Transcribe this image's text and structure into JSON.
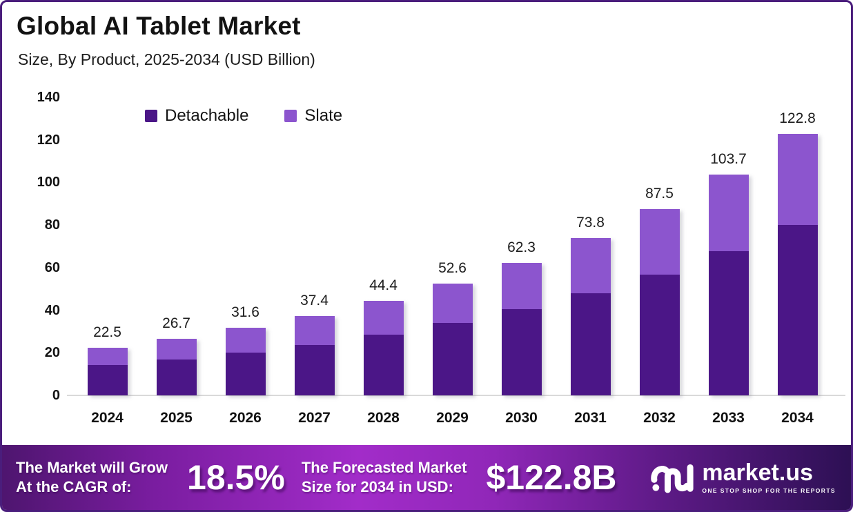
{
  "header": {
    "title": "Global AI Tablet Market",
    "subtitle": "Size, By Product, 2025-2034 (USD Billion)"
  },
  "chart_data": {
    "type": "bar",
    "stacked": true,
    "title": "Global AI Tablet Market Size, By Product, 2025-2034 (USD Billion)",
    "categories": [
      "2024",
      "2025",
      "2026",
      "2027",
      "2028",
      "2029",
      "2030",
      "2031",
      "2032",
      "2033",
      "2034"
    ],
    "series": [
      {
        "name": "Detachable",
        "color": "#4B1687",
        "values": [
          14.3,
          16.9,
          20.0,
          23.8,
          28.5,
          34.0,
          40.5,
          48.0,
          56.7,
          67.7,
          80.1
        ]
      },
      {
        "name": "Slate",
        "color": "#8C55CE",
        "values": [
          8.2,
          9.8,
          11.6,
          13.6,
          15.9,
          18.6,
          21.8,
          25.8,
          30.8,
          36.0,
          42.7
        ]
      }
    ],
    "totals": [
      22.5,
      26.7,
      31.6,
      37.4,
      44.4,
      52.6,
      62.3,
      73.8,
      87.5,
      103.7,
      122.8
    ],
    "total_labels": [
      "22.5",
      "26.7",
      "31.6",
      "37.4",
      "44.4",
      "52.6",
      "62.3",
      "73.8",
      "87.5",
      "103.7",
      "122.8"
    ],
    "ylim": [
      0,
      140
    ],
    "ytick_step": 20,
    "grid": false,
    "legend_position": "top-left"
  },
  "banner": {
    "cagr_label_line1": "The Market will Grow",
    "cagr_label_line2": "At the CAGR of:",
    "cagr_value": "18.5%",
    "forecast_label_line1": "The Forecasted Market",
    "forecast_label_line2": "Size for 2034 in USD:",
    "forecast_value": "$122.8B",
    "brand_name": "market.us",
    "brand_tagline": "ONE STOP SHOP FOR THE REPORTS"
  },
  "colors": {
    "detachable": "#4B1687",
    "slate": "#8C55CE",
    "frame_border": "#4A1D7C",
    "axis_line": "#D9D9D9",
    "banner_text": "#FFFFFF"
  }
}
